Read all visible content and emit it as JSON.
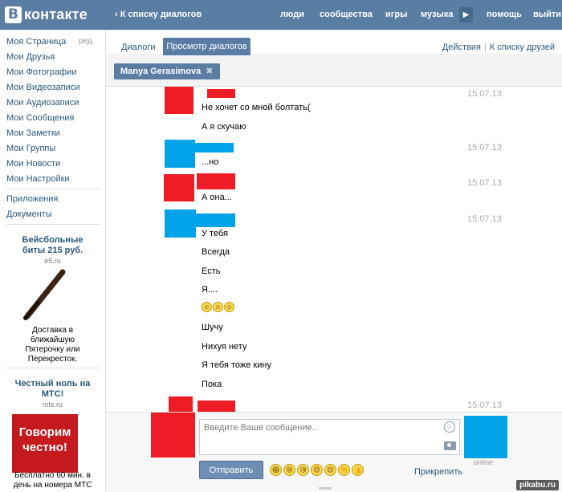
{
  "header": {
    "logo_letter": "В",
    "logo_text": "контакте",
    "back_link": "К списку диалогов",
    "nav": [
      "люди",
      "сообщества",
      "игры",
      "музыка",
      "помощь",
      "выйти"
    ],
    "nav_arrow": "▶"
  },
  "sidebar": {
    "items": [
      "Моя Страница",
      "Мои Друзья",
      "Мои Фотографии",
      "Мои Видеозаписи",
      "Мои Аудиозаписи",
      "Мои Сообщения",
      "Мои Заметки",
      "Мои Группы",
      "Мои Новости",
      "Мои Настройки"
    ],
    "edit": "ред.",
    "extra_items": [
      "Приложения",
      "Документы"
    ],
    "ad1": {
      "title": "Бейсбольные биты 215 руб.",
      "domain": "e5.ru",
      "text": "Доставка в ближайшую Пятерочку или Перекресток."
    },
    "ad2": {
      "title": "Честный ноль на МТС!",
      "domain": "mts.ru",
      "banner": "Говорим честно!",
      "text": "Бесплатно 60 мин. в день на номера МТС"
    }
  },
  "tabs": {
    "dialogs": "Диалоги",
    "view": "Просмотр диалогов",
    "actions": "Действия",
    "friends": "К списку друзей"
  },
  "filter": {
    "chip": "Manya Gerasimova",
    "chip_close": "✖"
  },
  "messages": [
    {
      "text": "Не хочет со мной болтать(",
      "date": "15.07.13"
    },
    {
      "text": "А я скучаю"
    },
    {
      "text": "...но",
      "date": "15.07.13"
    },
    {
      "text": "А она...",
      "date": "15.07.13"
    },
    {
      "text": "У тебя",
      "date": "15.07.13"
    },
    {
      "text": "Всегда"
    },
    {
      "text": "Есть"
    },
    {
      "text": "Я...."
    },
    {
      "text": "Шучу"
    },
    {
      "text": "Нихуя нету"
    },
    {
      "text": "Я тебя тоже кину"
    },
    {
      "text": "Пока"
    }
  ],
  "last_date": "15.07.13",
  "smiles": [
    "☺",
    "☺",
    "☺"
  ],
  "composer": {
    "placeholder": "Введите Ваше сообщение..",
    "send": "Отправить",
    "attach": "Прикрепить",
    "online": "online",
    "emojis": [
      "😱",
      "😜",
      "😘",
      "😌",
      "😉",
      "👏",
      "👍"
    ]
  },
  "watermark": "pikabu.ru",
  "colors": {
    "header": "#597da3",
    "link": "#2b587a",
    "red": "#ee1c25",
    "blue": "#00a2e8"
  }
}
